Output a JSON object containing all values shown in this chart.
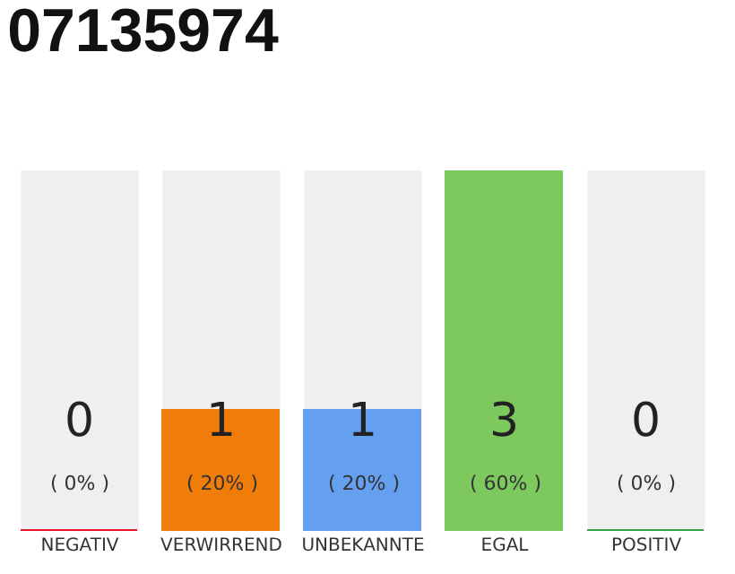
{
  "chart_data": {
    "type": "bar",
    "title": "07135974",
    "categories": [
      "NEGATIV",
      "VERWIRREND",
      "UNBEKANNTE",
      "EGAL",
      "POSITIV"
    ],
    "values": [
      0,
      1,
      1,
      3,
      0
    ],
    "colors": [
      "#e8132a",
      "#f07d0a",
      "#659ff0",
      "#7ec95e",
      "#2ea84a"
    ],
    "value_labels": [
      "0\n( 0% )",
      "1\n( 20% )",
      "1\n( 20% )",
      "3\n( 60% )",
      "0\n( 0% )"
    ],
    "ylim": [
      0,
      3
    ],
    "grid": false,
    "legend": false
  }
}
